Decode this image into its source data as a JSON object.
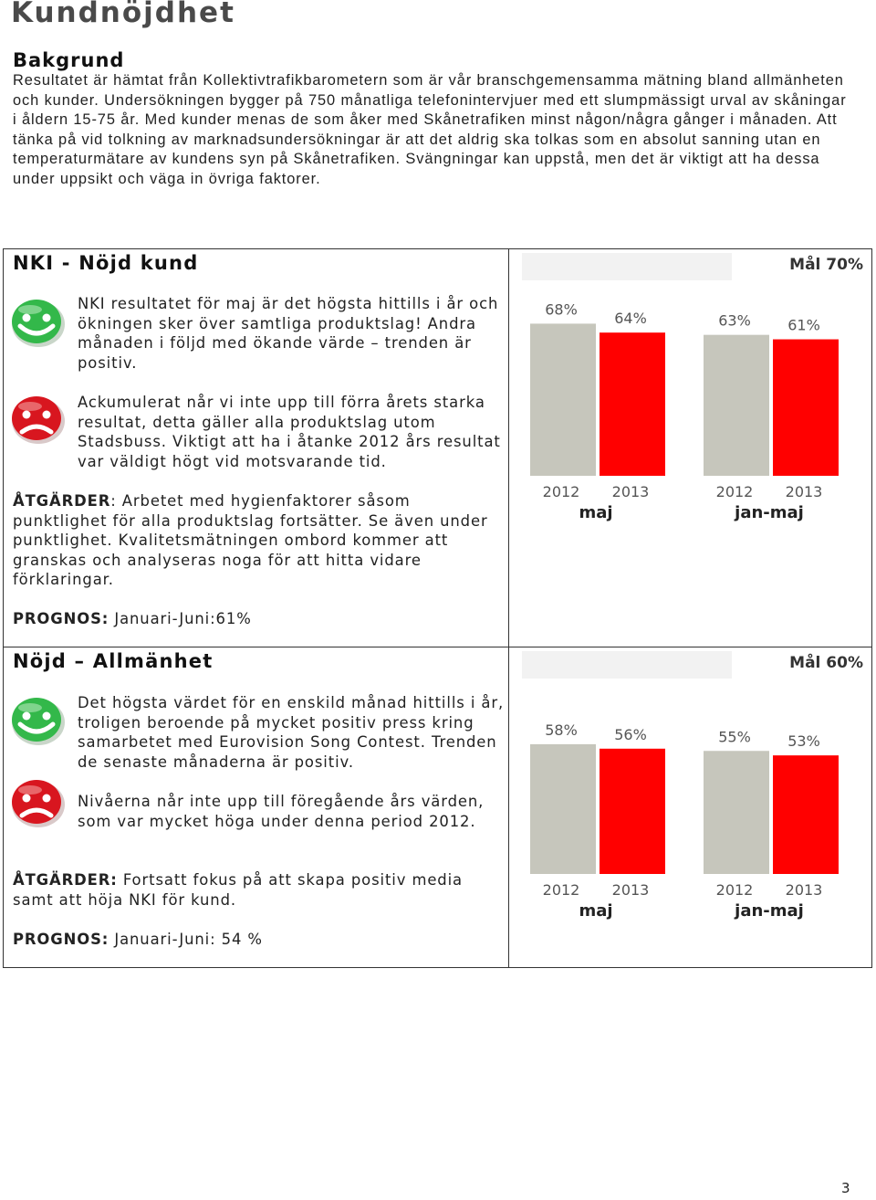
{
  "page": {
    "title": "Kundnöjdhet",
    "page_number": "3"
  },
  "background": {
    "heading": "Bakgrund",
    "text": "Resultatet är hämtat från Kollektivtrafikbarometern som är vår branschgemensamma mätning bland allmänheten och kunder. Undersökningen bygger på 750 månatliga telefonintervjuer med ett slumpmässigt urval av skåningar i åldern 15-75 år. Med kunder menas de som åker med Skånetrafiken minst någon/några gånger i månaden. Att tänka på vid tolkning av marknadsundersökningar är att det aldrig ska tolkas som en absolut sanning utan en temperaturmätare av kundens syn på Skånetrafiken. Svängningar kan uppstå, men det är viktigt att ha dessa under uppsikt och väga in övriga faktorer."
  },
  "nki": {
    "title": "NKI - Nöjd kund",
    "positive_text": "NKI resultatet för maj är det högsta hittills i år och ökningen sker över samtliga produktslag! Andra månaden i följd med ökande värde – trenden är positiv.",
    "negative_text": "Ackumulerat når vi inte upp till förra årets starka resultat, detta gäller alla produktslag utom Stadsbuss. Viktigt att ha i åtanke 2012 års resultat var väldigt högt vid motsvarande tid.",
    "atgarder_label": "ÅTGÄRDER",
    "atgarder_text": ": Arbetet med hygienfaktorer såsom punktlighet för alla produktslag fortsätter. Se även under punktlighet. Kvalitetsmätningen ombord kommer att granskas och analyseras noga för att hitta vidare förklaringar.",
    "prognos_label": "PROGNOS:",
    "prognos_text": " Januari-Juni:61%"
  },
  "allmanhet": {
    "title": "Nöjd – Allmänhet",
    "positive_text": "Det högsta värdet för en enskild månad hittills i år, troligen beroende på mycket positiv press kring samarbetet med Eurovision Song Contest. Trenden de senaste månaderna är positiv.",
    "negative_text": "Nivåerna når inte upp till föregående års värden, som var mycket höga under denna period 2012.",
    "atgarder_label": "ÅTGÄRDER:",
    "atgarder_text": " Fortsatt fokus på att skapa positiv media samt att höja NKI för kund.",
    "prognos_label": "PROGNOS:",
    "prognos_text": " Januari-Juni: 54 %"
  },
  "icons": {
    "positive": "happy-smiley-icon",
    "negative": "sad-smiley-icon"
  },
  "colors": {
    "bar_2012": "#c6c6bc",
    "bar_2013": "#ff0000",
    "smiley_green": "#33b84a",
    "smiley_red": "#d8161f"
  },
  "chart_data": [
    {
      "type": "bar",
      "goal_label": "Mål 70%",
      "groups": [
        {
          "label": "maj",
          "bars": [
            {
              "year": "2012",
              "value": 68,
              "label": "68%"
            },
            {
              "year": "2013",
              "value": 64,
              "label": "64%"
            }
          ]
        },
        {
          "label": "jan-maj",
          "bars": [
            {
              "year": "2012",
              "value": 63,
              "label": "63%"
            },
            {
              "year": "2013",
              "value": 61,
              "label": "61%"
            }
          ]
        }
      ]
    },
    {
      "type": "bar",
      "goal_label": "Mål 60%",
      "groups": [
        {
          "label": "maj",
          "bars": [
            {
              "year": "2012",
              "value": 58,
              "label": "58%"
            },
            {
              "year": "2013",
              "value": 56,
              "label": "56%"
            }
          ]
        },
        {
          "label": "jan-maj",
          "bars": [
            {
              "year": "2012",
              "value": 55,
              "label": "55%"
            },
            {
              "year": "2013",
              "value": 53,
              "label": "53%"
            }
          ]
        }
      ]
    }
  ]
}
